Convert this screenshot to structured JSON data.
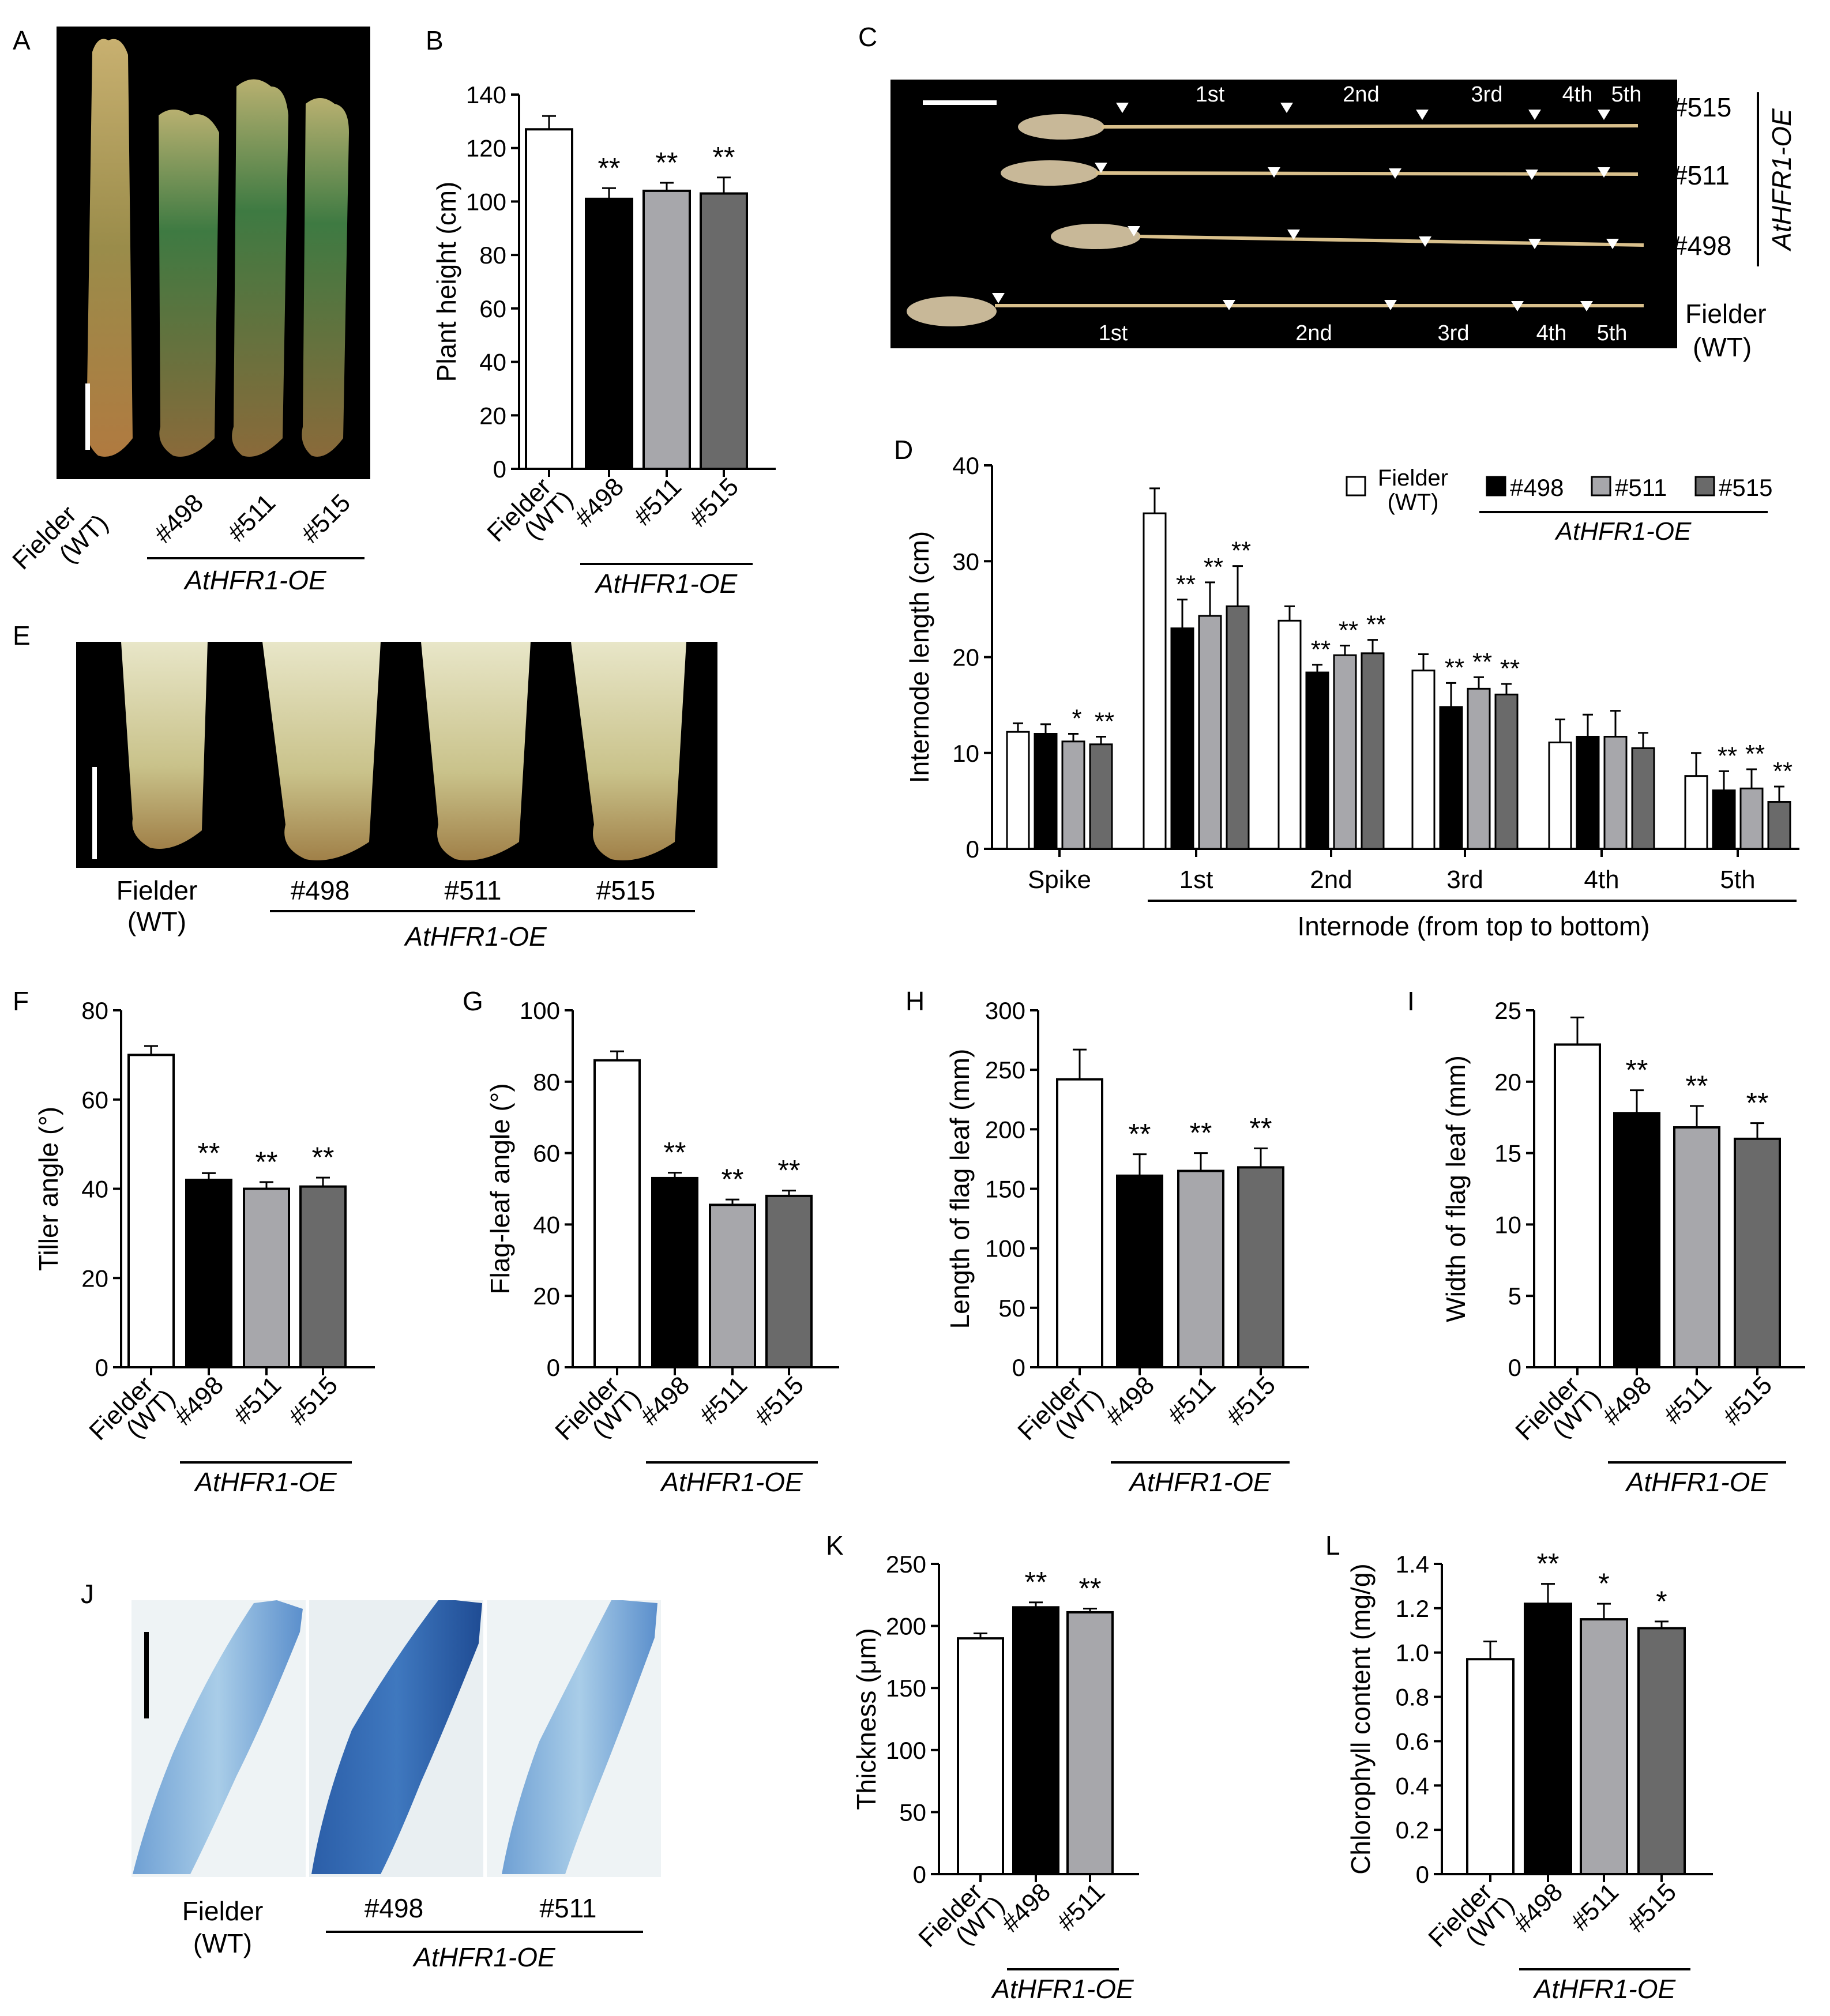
{
  "panels": {
    "A": "A",
    "B": "B",
    "C": "C",
    "D": "D",
    "E": "E",
    "F": "F",
    "G": "G",
    "H": "H",
    "I": "I",
    "J": "J",
    "K": "K",
    "L": "L"
  },
  "genotypes": {
    "wt_line1": "Fielder",
    "wt_line2": "(WT)",
    "l498": "#498",
    "l511": "#511",
    "l515": "#515",
    "group": "AtHFR1-OE"
  },
  "photo_c": {
    "lines": [
      "#515",
      "#511",
      "#498"
    ],
    "wt_line1": "Fielder",
    "wt_line2": "(WT)",
    "group": "AtHFR1-OE",
    "top_labels": [
      "1st",
      "2nd",
      "3rd",
      "4th",
      "5th"
    ],
    "bottom_labels": [
      "1st",
      "2nd",
      "3rd",
      "4th",
      "5th"
    ]
  },
  "colors": {
    "wt": "#ffffff",
    "l498": "#000000",
    "l511": "#a7a7ab",
    "l515": "#6a6a6a"
  },
  "chart_data": [
    {
      "panel": "B",
      "type": "bar",
      "categories": [
        "Fielder (WT)",
        "#498",
        "#511",
        "#515"
      ],
      "values": [
        127,
        101,
        104,
        103
      ],
      "errors": [
        5,
        4,
        3,
        6
      ],
      "significance": [
        "",
        "**",
        "**",
        "**"
      ],
      "ylabel": "Plant height (cm)",
      "ylim": [
        0,
        140
      ],
      "yticks": [
        0,
        20,
        40,
        60,
        80,
        100,
        120,
        140
      ],
      "group_label": "AtHFR1-OE"
    },
    {
      "panel": "D",
      "type": "bar",
      "categories": [
        "Spike",
        "1st",
        "2nd",
        "3rd",
        "4th",
        "5th"
      ],
      "series": [
        {
          "name": "Fielder (WT)",
          "values": [
            12.2,
            35.0,
            23.8,
            18.6,
            11.1,
            7.6
          ],
          "errors": [
            0.9,
            2.6,
            1.5,
            1.7,
            2.4,
            2.4
          ],
          "significance": [
            "",
            "",
            "",
            "",
            "",
            ""
          ]
        },
        {
          "name": "#498",
          "values": [
            12.0,
            23.0,
            18.4,
            14.8,
            11.7,
            6.1
          ],
          "errors": [
            1.0,
            3.0,
            0.8,
            2.5,
            2.3,
            2.0
          ],
          "significance": [
            "",
            "**",
            "**",
            "**",
            "",
            "**"
          ]
        },
        {
          "name": "#511",
          "values": [
            11.2,
            24.3,
            20.2,
            16.7,
            11.7,
            6.3
          ],
          "errors": [
            0.8,
            3.5,
            1.0,
            1.2,
            2.7,
            2.0
          ],
          "significance": [
            "*",
            "**",
            "**",
            "**",
            "",
            "**"
          ]
        },
        {
          "name": "#515",
          "values": [
            10.9,
            25.3,
            20.4,
            16.1,
            10.5,
            4.9
          ],
          "errors": [
            0.8,
            4.2,
            1.4,
            1.1,
            1.6,
            1.6
          ],
          "significance": [
            "**",
            "**",
            "**",
            "**",
            "",
            "**"
          ]
        }
      ],
      "ylabel": "Internode length (cm)",
      "xlabel": "Internode (from top to bottom)",
      "ylim": [
        0,
        40
      ],
      "yticks": [
        0,
        10,
        20,
        30,
        40
      ],
      "legend_position": "top-right",
      "group_label": "AtHFR1-OE"
    },
    {
      "panel": "F",
      "type": "bar",
      "categories": [
        "Fielder (WT)",
        "#498",
        "#511",
        "#515"
      ],
      "values": [
        70,
        42,
        40,
        40.5
      ],
      "errors": [
        2,
        1.5,
        1.5,
        2
      ],
      "significance": [
        "",
        "**",
        "**",
        "**"
      ],
      "ylabel": "Tiller angle (°)",
      "ylim": [
        0,
        80
      ],
      "yticks": [
        0,
        20,
        40,
        60,
        80
      ],
      "group_label": "AtHFR1-OE"
    },
    {
      "panel": "G",
      "type": "bar",
      "categories": [
        "Fielder (WT)",
        "#498",
        "#511",
        "#515"
      ],
      "values": [
        86,
        53,
        45.5,
        48
      ],
      "errors": [
        2.5,
        1.5,
        1.5,
        1.5
      ],
      "significance": [
        "",
        "**",
        "**",
        "**"
      ],
      "ylabel": "Flag-leaf angle (°)",
      "ylim": [
        0,
        100
      ],
      "yticks": [
        0,
        20,
        40,
        60,
        80,
        100
      ],
      "group_label": "AtHFR1-OE"
    },
    {
      "panel": "H",
      "type": "bar",
      "categories": [
        "Fielder (WT)",
        "#498",
        "#511",
        "#515"
      ],
      "values": [
        242,
        161,
        165,
        168
      ],
      "errors": [
        25,
        18,
        15,
        16
      ],
      "significance": [
        "",
        "**",
        "**",
        "**"
      ],
      "ylabel": "Length of flag leaf (mm)",
      "ylim": [
        0,
        300
      ],
      "yticks": [
        0,
        50,
        100,
        150,
        200,
        250,
        300
      ],
      "group_label": "AtHFR1-OE"
    },
    {
      "panel": "I",
      "type": "bar",
      "categories": [
        "Fielder (WT)",
        "#498",
        "#511",
        "#515"
      ],
      "values": [
        22.6,
        17.8,
        16.8,
        16.0
      ],
      "errors": [
        1.9,
        1.6,
        1.5,
        1.1
      ],
      "significance": [
        "",
        "**",
        "**",
        "**"
      ],
      "ylabel": "Width of flag leaf (mm)",
      "ylim": [
        0,
        25
      ],
      "yticks": [
        0,
        5,
        10,
        15,
        20,
        25
      ],
      "group_label": "AtHFR1-OE"
    },
    {
      "panel": "K",
      "type": "bar",
      "categories": [
        "Fielder (WT)",
        "#498",
        "#511"
      ],
      "values": [
        190,
        215,
        211
      ],
      "errors": [
        4,
        4,
        3
      ],
      "significance": [
        "",
        "**",
        "**"
      ],
      "ylabel": "Thickness (μm)",
      "ylim": [
        0,
        250
      ],
      "yticks": [
        0,
        50,
        100,
        150,
        200,
        250
      ],
      "group_label": "AtHFR1-OE"
    },
    {
      "panel": "L",
      "type": "bar",
      "categories": [
        "Fielder (WT)",
        "#498",
        "#511",
        "#515"
      ],
      "values": [
        0.97,
        1.22,
        1.15,
        1.11
      ],
      "errors": [
        0.08,
        0.09,
        0.07,
        0.03
      ],
      "significance": [
        "",
        "**",
        "*",
        "*"
      ],
      "ylabel": "Chlorophyll content (mg/g)",
      "ylim": [
        0,
        1.4
      ],
      "yticks": [
        "0",
        "0.2",
        "0.4",
        "0.6",
        "0.8",
        "1.0",
        "1.2",
        "1.4"
      ],
      "group_label": "AtHFR1-OE"
    }
  ]
}
